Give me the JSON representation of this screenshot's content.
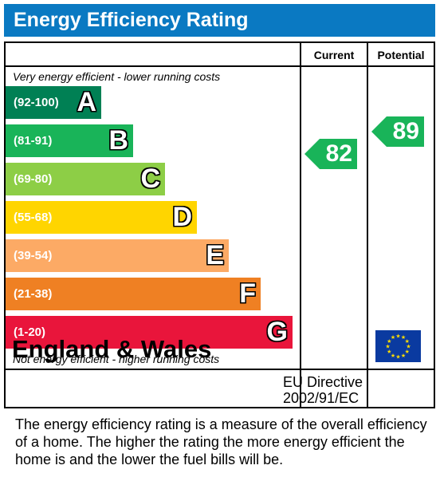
{
  "title": "Energy Efficiency Rating",
  "columns": {
    "current": "Current",
    "potential": "Potential"
  },
  "top_note": "Very energy efficient - lower running costs",
  "bottom_note": "Not energy efficient - higher running costs",
  "bands": [
    {
      "range": "(92-100)",
      "letter": "A",
      "color": "#008054"
    },
    {
      "range": "(81-91)",
      "letter": "B",
      "color": "#19b459"
    },
    {
      "range": "(69-80)",
      "letter": "C",
      "color": "#8dce46"
    },
    {
      "range": "(55-68)",
      "letter": "D",
      "color": "#ffd500"
    },
    {
      "range": "(39-54)",
      "letter": "E",
      "color": "#fcaa65"
    },
    {
      "range": "(21-38)",
      "letter": "F",
      "color": "#ef8023"
    },
    {
      "range": "(1-20)",
      "letter": "G",
      "color": "#e9153b"
    }
  ],
  "current_rating": {
    "value": "82",
    "band": "B",
    "color": "#19b459"
  },
  "potential_rating": {
    "value": "89",
    "band": "B",
    "color": "#19b459"
  },
  "footer": {
    "country": "England & Wales",
    "directive_line1": "EU Directive",
    "directive_line2": "2002/91/EC",
    "flag_color": "#0a3aa0",
    "star_color": "#ffdd00"
  },
  "description": "The energy efficiency rating is a measure of the overall efficiency of a home.  The higher the rating the more energy efficient the home is and the lower the fuel bills will be.",
  "chart_data": {
    "type": "bar",
    "categories": [
      "A",
      "B",
      "C",
      "D",
      "E",
      "F",
      "G"
    ],
    "category_ranges": [
      "(92-100)",
      "(81-91)",
      "(69-80)",
      "(55-68)",
      "(39-54)",
      "(21-38)",
      "(1-20)"
    ],
    "series": [
      {
        "name": "Current",
        "values": [
          null,
          82,
          null,
          null,
          null,
          null,
          null
        ]
      },
      {
        "name": "Potential",
        "values": [
          null,
          89,
          null,
          null,
          null,
          null,
          null
        ]
      }
    ],
    "title": "Energy Efficiency Rating"
  }
}
